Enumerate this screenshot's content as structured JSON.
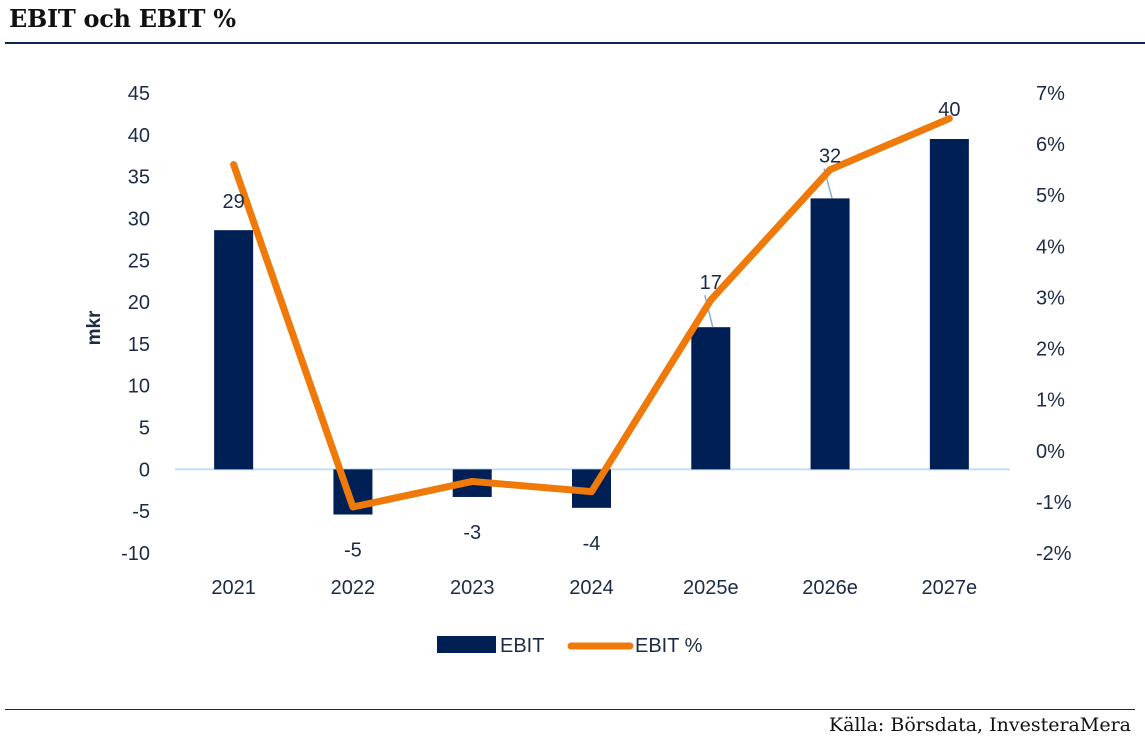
{
  "header": {
    "title": "EBIT och EBIT %"
  },
  "footer": {
    "source": "Källa: Börsdata, InvesteraMera"
  },
  "colors": {
    "bar": "#001f54",
    "line": "#ef7a0a",
    "zero_line": "#c6dcf0",
    "text": "#1b2a45",
    "leader": "#7fb0d8"
  },
  "chart_data": {
    "type": "bar",
    "title": "EBIT och EBIT %",
    "categories": [
      "2021",
      "2022",
      "2023",
      "2024",
      "2025e",
      "2026e",
      "2027e"
    ],
    "series": [
      {
        "name": "EBIT",
        "type": "bar",
        "axis": "left",
        "values": [
          29,
          -5,
          -3,
          -4,
          17,
          32,
          40
        ],
        "labels": [
          "29",
          "-5",
          "-3",
          "-4",
          "17",
          "32",
          "40"
        ]
      },
      {
        "name": "EBIT %",
        "type": "line",
        "axis": "right",
        "values": [
          5.6,
          -1.1,
          -0.6,
          -0.8,
          2.95,
          5.5,
          6.5
        ]
      }
    ],
    "bar_heights_estimated": [
      28.6,
      -5.4,
      -3.3,
      -4.6,
      17.0,
      32.4,
      39.5
    ],
    "ylabel": "mkr",
    "xlabel": "",
    "ylim": [
      -10,
      45
    ],
    "yticks": [
      "45",
      "40",
      "35",
      "30",
      "25",
      "20",
      "15",
      "10",
      "5",
      "0",
      "-5",
      "-10"
    ],
    "y2lim": [
      -2,
      7
    ],
    "y2ticks": [
      "7%",
      "6%",
      "5%",
      "4%",
      "3%",
      "2%",
      "1%",
      "0%",
      "-1%",
      "-2%"
    ],
    "grid": false,
    "legend": {
      "position": "bottom",
      "entries": [
        "EBIT",
        "EBIT %"
      ]
    }
  }
}
